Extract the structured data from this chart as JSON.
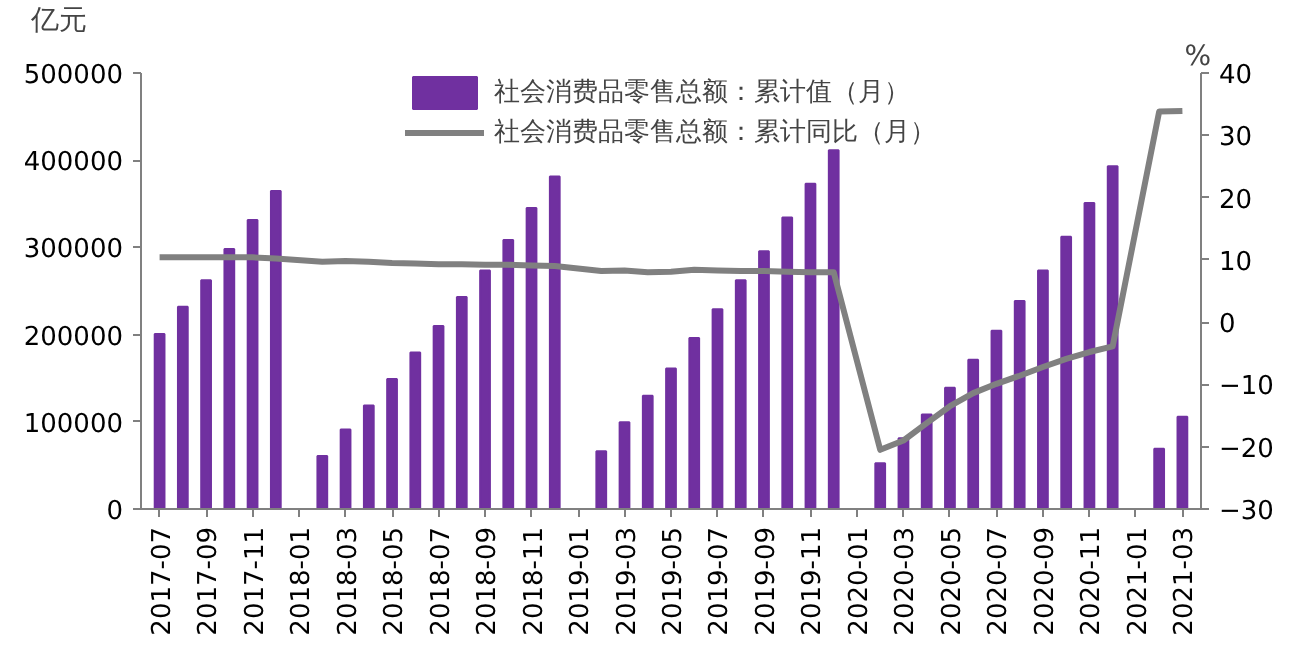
{
  "chart_data": {
    "type": "bar",
    "ylabel": "亿元",
    "y2label": "%",
    "legend": "top",
    "grid": false,
    "categories": [
      "2017-07",
      null,
      "2017-09",
      null,
      "2017-11",
      null,
      "2018-01",
      null,
      "2018-03",
      null,
      "2018-05",
      null,
      "2018-07",
      null,
      "2018-09",
      null,
      "2018-11",
      null,
      "2019-01",
      null,
      "2019-03",
      null,
      "2019-05",
      null,
      "2019-07",
      null,
      "2019-09",
      null,
      "2019-11",
      null,
      "2020-01",
      null,
      "2020-03",
      null,
      "2020-05",
      null,
      "2020-07",
      null,
      "2020-09",
      null,
      "2020-11",
      null,
      "2021-01",
      null,
      "2021-03"
    ],
    "ylim": [
      0,
      500000
    ],
    "yticks": [
      0,
      100000,
      200000,
      300000,
      400000,
      500000
    ],
    "y2lim": [
      -30,
      40
    ],
    "y2ticks": [
      -30,
      -20,
      -10,
      0,
      10,
      20,
      30,
      40
    ],
    "series": [
      {
        "name": "社会消费品零售总额：累计值（月）",
        "color": "#7030a0",
        "values": [
          200800,
          232000,
          262400,
          298300,
          331400,
          364600,
          null,
          60800,
          91100,
          118800,
          149100,
          179500,
          209900,
          243100,
          273400,
          308500,
          345300,
          381200,
          null,
          66300,
          99400,
          129800,
          161000,
          196100,
          229200,
          262400,
          295500,
          334200,
          372900,
          411500,
          null,
          52500,
          81000,
          108500,
          139000,
          171200,
          204400,
          238400,
          273400,
          312100,
          350800,
          393000,
          null,
          69000,
          105800
        ]
      },
      {
        "name": "社会消费品零售总额：累计同比（月）",
        "type": "line",
        "axis": "y2",
        "color": "#808080",
        "line_style": "solid",
        "marker": "none",
        "values": [
          10.4,
          10.4,
          10.4,
          10.4,
          10.4,
          10.2,
          null,
          9.7,
          9.8,
          9.7,
          9.5,
          9.4,
          9.3,
          9.3,
          9.2,
          9.2,
          9.1,
          9.0,
          null,
          8.2,
          8.3,
          8.0,
          8.1,
          8.4,
          8.3,
          8.2,
          8.2,
          8.1,
          8.0,
          8.0,
          null,
          -20.5,
          -19.0,
          -16.2,
          -13.5,
          -11.4,
          -9.9,
          -8.6,
          -7.2,
          -5.9,
          -4.8,
          -3.9,
          null,
          33.8,
          33.9
        ]
      }
    ]
  }
}
